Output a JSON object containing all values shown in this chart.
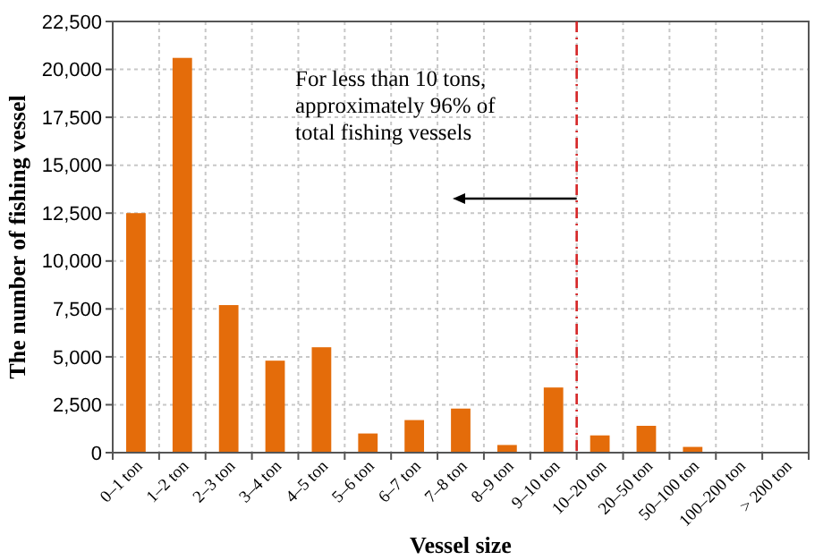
{
  "chart_data": {
    "type": "bar",
    "xlabel": "Vessel size",
    "ylabel": "The number of fishing vessel",
    "categories": [
      "0–1 ton",
      "1–2 ton",
      "2–3 ton",
      "3–4 ton",
      "4–5 ton",
      "5–6 ton",
      "6–7 ton",
      "7–8 ton",
      "8–9 ton",
      "9–10 ton",
      "10–20 ton",
      "20–50 ton",
      "50–100 ton",
      "100–200 ton",
      "> 200 ton"
    ],
    "values": [
      12500,
      20600,
      7700,
      4800,
      5500,
      1000,
      1700,
      2300,
      400,
      3400,
      900,
      1400,
      300,
      0,
      0
    ],
    "color": "#e46c0a",
    "ylim": [
      0,
      22500
    ],
    "yticks": [
      {
        "value": 0,
        "label": "0"
      },
      {
        "value": 2500,
        "label": "2,500"
      },
      {
        "value": 5000,
        "label": "5,000"
      },
      {
        "value": 7500,
        "label": "7,500"
      },
      {
        "value": 10000,
        "label": "10,000"
      },
      {
        "value": 12500,
        "label": "12,500"
      },
      {
        "value": 15000,
        "label": "15,000"
      },
      {
        "value": 17500,
        "label": "17,500"
      },
      {
        "value": 20000,
        "label": "20,000"
      },
      {
        "value": 22500,
        "label": "22,500"
      }
    ],
    "grid": true,
    "ref_lines": [
      {
        "axis": "x",
        "value": "9–10 ton",
        "color": "#d62728",
        "line_style": "dashed"
      }
    ],
    "annotations": [
      "For less than 10 tons, approximately 96% of total fishing vessels"
    ]
  }
}
